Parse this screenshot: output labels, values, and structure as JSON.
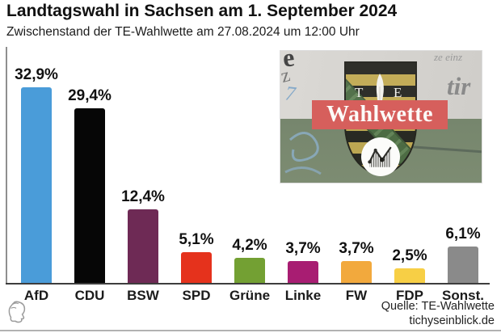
{
  "header": {
    "title": "Landtagswahl in Sachsen am 1. September 2024",
    "subtitle": "Zwischenstand der TE-Wahlwette am 27.08.2024 um 12:00 Uhr"
  },
  "chart_data": {
    "type": "bar",
    "title": "Landtagswahl in Sachsen am 1. September 2024",
    "subtitle": "Zwischenstand der TE-Wahlwette am 27.08.2024 um 12:00 Uhr",
    "categories": [
      "AfD",
      "CDU",
      "BSW",
      "SPD",
      "Grüne",
      "Linke",
      "FW",
      "FDP",
      "Sonst."
    ],
    "values": [
      32.9,
      29.4,
      12.4,
      5.1,
      4.2,
      3.7,
      3.7,
      2.5,
      6.1
    ],
    "value_labels": [
      "32,9%",
      "29,4%",
      "12,4%",
      "5,1%",
      "4,2%",
      "3,7%",
      "3,7%",
      "2,5%",
      "6,1%"
    ],
    "bar_colors": [
      "#4a9cd9",
      "#060606",
      "#6e2a55",
      "#e5321c",
      "#73a033",
      "#a81d72",
      "#f2a93d",
      "#f7cf45",
      "#8a8a8a"
    ],
    "unit": "%",
    "ylim": [
      0,
      35
    ],
    "grid": false,
    "legend": "none",
    "data_labels": true
  },
  "logo": {
    "te_left": "T",
    "te_right": "E",
    "banner": "Wahlwette",
    "banner_color": "#d65f5c",
    "background_fragments": {
      "big_e": "e",
      "z": "z",
      "seven": "7",
      "ze_einz": "ze einz",
      "tir": "tir"
    }
  },
  "footer": {
    "source_line1": "Quelle: TE-Wahlwette",
    "source_line2": "tichyseinblick.de"
  },
  "icons": {
    "footer_logo": "classical-head-profile",
    "logo_circle": "line-chart",
    "logo_quill": "white-quill"
  }
}
